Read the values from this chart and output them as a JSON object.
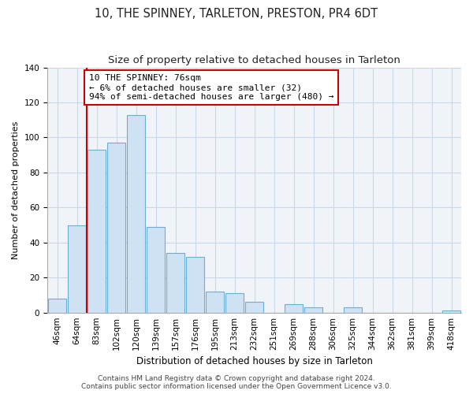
{
  "title": "10, THE SPINNEY, TARLETON, PRESTON, PR4 6DT",
  "subtitle": "Size of property relative to detached houses in Tarleton",
  "xlabel": "Distribution of detached houses by size in Tarleton",
  "ylabel": "Number of detached properties",
  "bar_labels": [
    "46sqm",
    "64sqm",
    "83sqm",
    "102sqm",
    "120sqm",
    "139sqm",
    "157sqm",
    "176sqm",
    "195sqm",
    "213sqm",
    "232sqm",
    "251sqm",
    "269sqm",
    "288sqm",
    "306sqm",
    "325sqm",
    "344sqm",
    "362sqm",
    "381sqm",
    "399sqm",
    "418sqm"
  ],
  "bar_values": [
    8,
    50,
    93,
    97,
    113,
    49,
    34,
    32,
    12,
    11,
    6,
    0,
    5,
    3,
    0,
    3,
    0,
    0,
    0,
    0,
    1
  ],
  "bar_color": "#cfe2f3",
  "bar_edge_color": "#6aaed6",
  "vline_x": 1.5,
  "vline_color": "#cc0000",
  "ylim": [
    0,
    140
  ],
  "yticks": [
    0,
    20,
    40,
    60,
    80,
    100,
    120,
    140
  ],
  "annotation_text": "10 THE SPINNEY: 76sqm\n← 6% of detached houses are smaller (32)\n94% of semi-detached houses are larger (480) →",
  "annotation_box_color": "#ffffff",
  "annotation_box_edge": "#cc0000",
  "footer_line1": "Contains HM Land Registry data © Crown copyright and database right 2024.",
  "footer_line2": "Contains public sector information licensed under the Open Government Licence v3.0.",
  "title_fontsize": 10.5,
  "subtitle_fontsize": 9.5,
  "xlabel_fontsize": 8.5,
  "ylabel_fontsize": 8,
  "tick_fontsize": 7.5,
  "annotation_fontsize": 8,
  "footer_fontsize": 6.5,
  "bg_color": "#f0f4f8"
}
